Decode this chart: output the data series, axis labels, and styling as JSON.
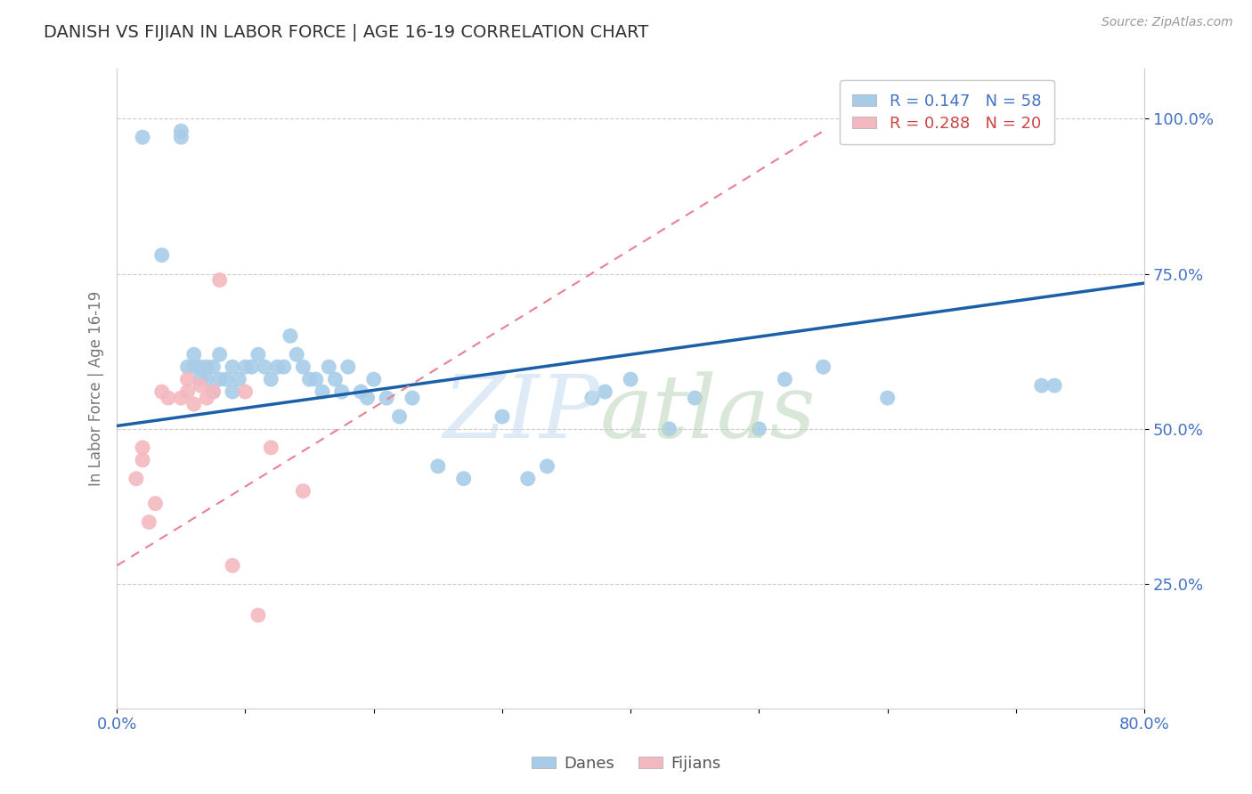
{
  "title": "DANISH VS FIJIAN IN LABOR FORCE | AGE 16-19 CORRELATION CHART",
  "source": "Source: ZipAtlas.com",
  "ylabel": "In Labor Force | Age 16-19",
  "xlim": [
    0.0,
    0.8
  ],
  "ylim": [
    0.05,
    1.08
  ],
  "yticks": [
    0.25,
    0.5,
    0.75,
    1.0
  ],
  "yticklabels": [
    "25.0%",
    "50.0%",
    "75.0%",
    "100.0%"
  ],
  "dane_R": 0.147,
  "dane_N": 58,
  "fijian_R": 0.288,
  "fijian_N": 20,
  "dane_color": "#a8cce8",
  "fijian_color": "#f4b8c0",
  "trend_dane_color": "#1a5fa8",
  "trend_fijian_color": "#e88090",
  "dane_x": [
    0.02,
    0.035,
    0.05,
    0.05,
    0.055,
    0.06,
    0.06,
    0.065,
    0.065,
    0.07,
    0.07,
    0.075,
    0.075,
    0.08,
    0.08,
    0.085,
    0.09,
    0.09,
    0.095,
    0.1,
    0.105,
    0.11,
    0.115,
    0.12,
    0.125,
    0.13,
    0.135,
    0.14,
    0.145,
    0.15,
    0.155,
    0.16,
    0.165,
    0.17,
    0.175,
    0.18,
    0.19,
    0.195,
    0.2,
    0.21,
    0.22,
    0.23,
    0.25,
    0.27,
    0.3,
    0.32,
    0.335,
    0.37,
    0.38,
    0.4,
    0.43,
    0.45,
    0.5,
    0.52,
    0.55,
    0.6,
    0.72,
    0.73
  ],
  "dane_y": [
    0.97,
    0.78,
    0.98,
    0.97,
    0.6,
    0.6,
    0.62,
    0.58,
    0.6,
    0.58,
    0.6,
    0.56,
    0.6,
    0.58,
    0.62,
    0.58,
    0.56,
    0.6,
    0.58,
    0.6,
    0.6,
    0.62,
    0.6,
    0.58,
    0.6,
    0.6,
    0.65,
    0.62,
    0.6,
    0.58,
    0.58,
    0.56,
    0.6,
    0.58,
    0.56,
    0.6,
    0.56,
    0.55,
    0.58,
    0.55,
    0.52,
    0.55,
    0.44,
    0.42,
    0.52,
    0.42,
    0.44,
    0.55,
    0.56,
    0.58,
    0.5,
    0.55,
    0.5,
    0.58,
    0.6,
    0.55,
    0.57,
    0.57
  ],
  "fijian_x": [
    0.015,
    0.02,
    0.02,
    0.025,
    0.03,
    0.035,
    0.04,
    0.05,
    0.055,
    0.055,
    0.06,
    0.065,
    0.07,
    0.075,
    0.08,
    0.09,
    0.1,
    0.11,
    0.12,
    0.145
  ],
  "fijian_y": [
    0.42,
    0.45,
    0.47,
    0.35,
    0.38,
    0.56,
    0.55,
    0.55,
    0.56,
    0.58,
    0.54,
    0.57,
    0.55,
    0.56,
    0.74,
    0.28,
    0.56,
    0.2,
    0.47,
    0.4
  ],
  "trend_dane_x0": 0.0,
  "trend_dane_x1": 0.8,
  "trend_dane_y0": 0.505,
  "trend_dane_y1": 0.735,
  "trend_fijian_x0": 0.0,
  "trend_fijian_x1": 0.55,
  "trend_fijian_y0": 0.28,
  "trend_fijian_y1": 0.98
}
